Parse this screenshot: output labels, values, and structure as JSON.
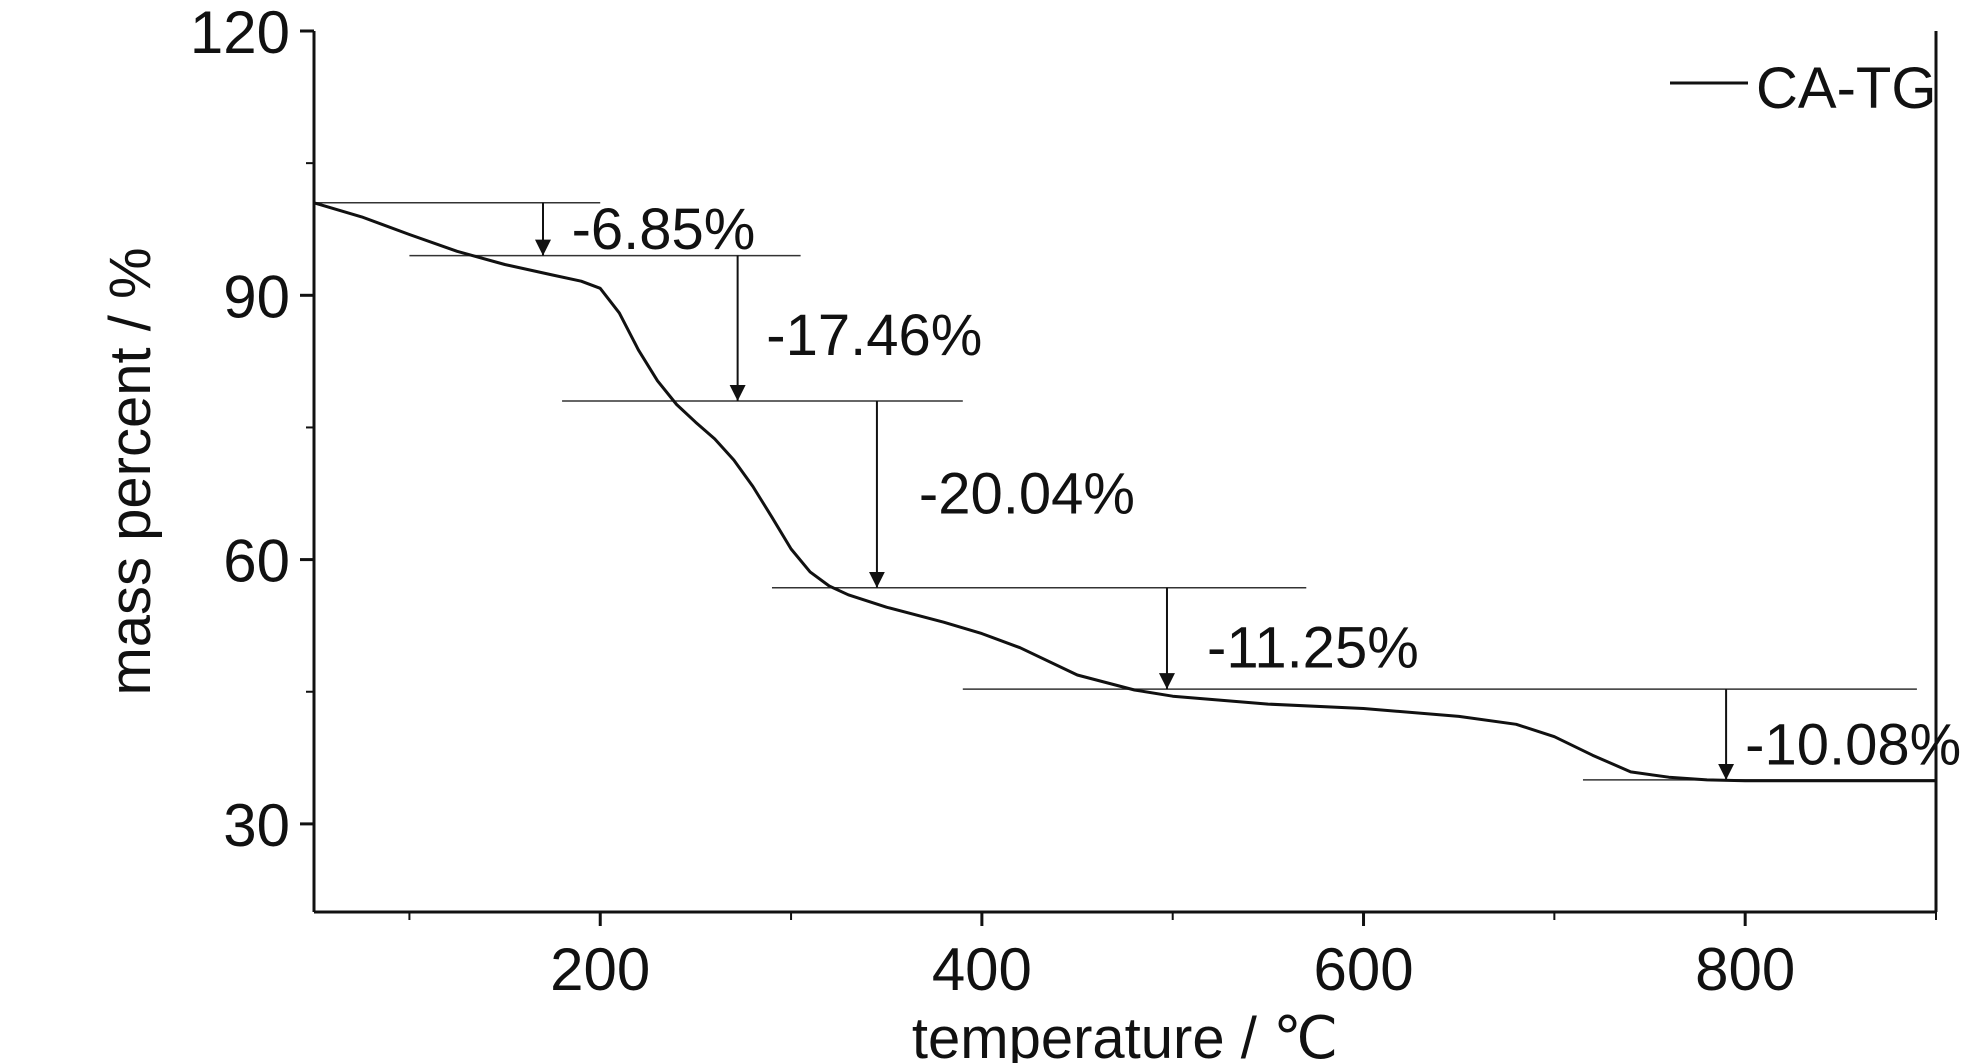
{
  "chart_data": {
    "type": "line",
    "xlabel": "temperature / ℃",
    "ylabel": "mass percent / %",
    "xlim": [
      50,
      900
    ],
    "ylim": [
      20,
      120
    ],
    "x_ticks": [
      200,
      400,
      600,
      800
    ],
    "y_ticks": [
      30,
      60,
      90,
      120
    ],
    "x_minor_ticks": [
      100,
      300,
      500,
      700,
      900
    ],
    "y_minor_ticks": [
      45,
      75,
      105
    ],
    "grid": false,
    "legend": {
      "position": "top-right",
      "entries": [
        "CA-TG"
      ]
    },
    "series": [
      {
        "name": "CA-TG",
        "color": "#111111",
        "x": [
          50,
          75,
          100,
          125,
          150,
          175,
          190,
          200,
          210,
          220,
          230,
          240,
          250,
          260,
          270,
          280,
          290,
          300,
          310,
          320,
          330,
          350,
          380,
          400,
          420,
          450,
          480,
          500,
          550,
          600,
          650,
          680,
          700,
          720,
          740,
          760,
          780,
          800,
          850,
          900
        ],
        "y": [
          100.5,
          98.9,
          96.9,
          95.0,
          93.5,
          92.3,
          91.6,
          90.8,
          88.0,
          83.8,
          80.3,
          77.6,
          75.6,
          73.7,
          71.3,
          68.3,
          64.8,
          61.2,
          58.6,
          57.0,
          56.0,
          54.6,
          52.9,
          51.6,
          50.0,
          46.9,
          45.2,
          44.5,
          43.6,
          43.1,
          42.2,
          41.3,
          39.9,
          37.8,
          35.9,
          35.3,
          35.0,
          34.9,
          34.9,
          34.9
        ]
      }
    ],
    "step_levels": [
      {
        "y": 100.5,
        "x_from": 50,
        "x_to": 200
      },
      {
        "y": 94.5,
        "x_from": 100,
        "x_to": 305
      },
      {
        "y": 78.0,
        "x_from": 180,
        "x_to": 390
      },
      {
        "y": 56.8,
        "x_from": 290,
        "x_to": 570
      },
      {
        "y": 45.3,
        "x_from": 390,
        "x_to": 890
      },
      {
        "y": 35.0,
        "x_from": 715,
        "x_to": 900
      }
    ],
    "annotations": [
      {
        "text": "-6.85%",
        "arrow_x": 170,
        "y_from": 100.5,
        "y_to": 94.5,
        "text_x": 185,
        "text_y": 97.5
      },
      {
        "text": "-17.46%",
        "arrow_x": 272,
        "y_from": 94.5,
        "y_to": 78.0,
        "text_x": 287,
        "text_y": 85.5
      },
      {
        "text": "-20.04%",
        "arrow_x": 345,
        "y_from": 78.0,
        "y_to": 56.8,
        "text_x": 367,
        "text_y": 67.5
      },
      {
        "text": "-11.25%",
        "arrow_x": 497,
        "y_from": 56.8,
        "y_to": 45.3,
        "text_x": 518,
        "text_y": 50.0
      },
      {
        "text": "-10.08%",
        "arrow_x": 790,
        "y_from": 45.3,
        "y_to": 35.0,
        "text_x": 800,
        "text_y": 39.0
      }
    ]
  }
}
